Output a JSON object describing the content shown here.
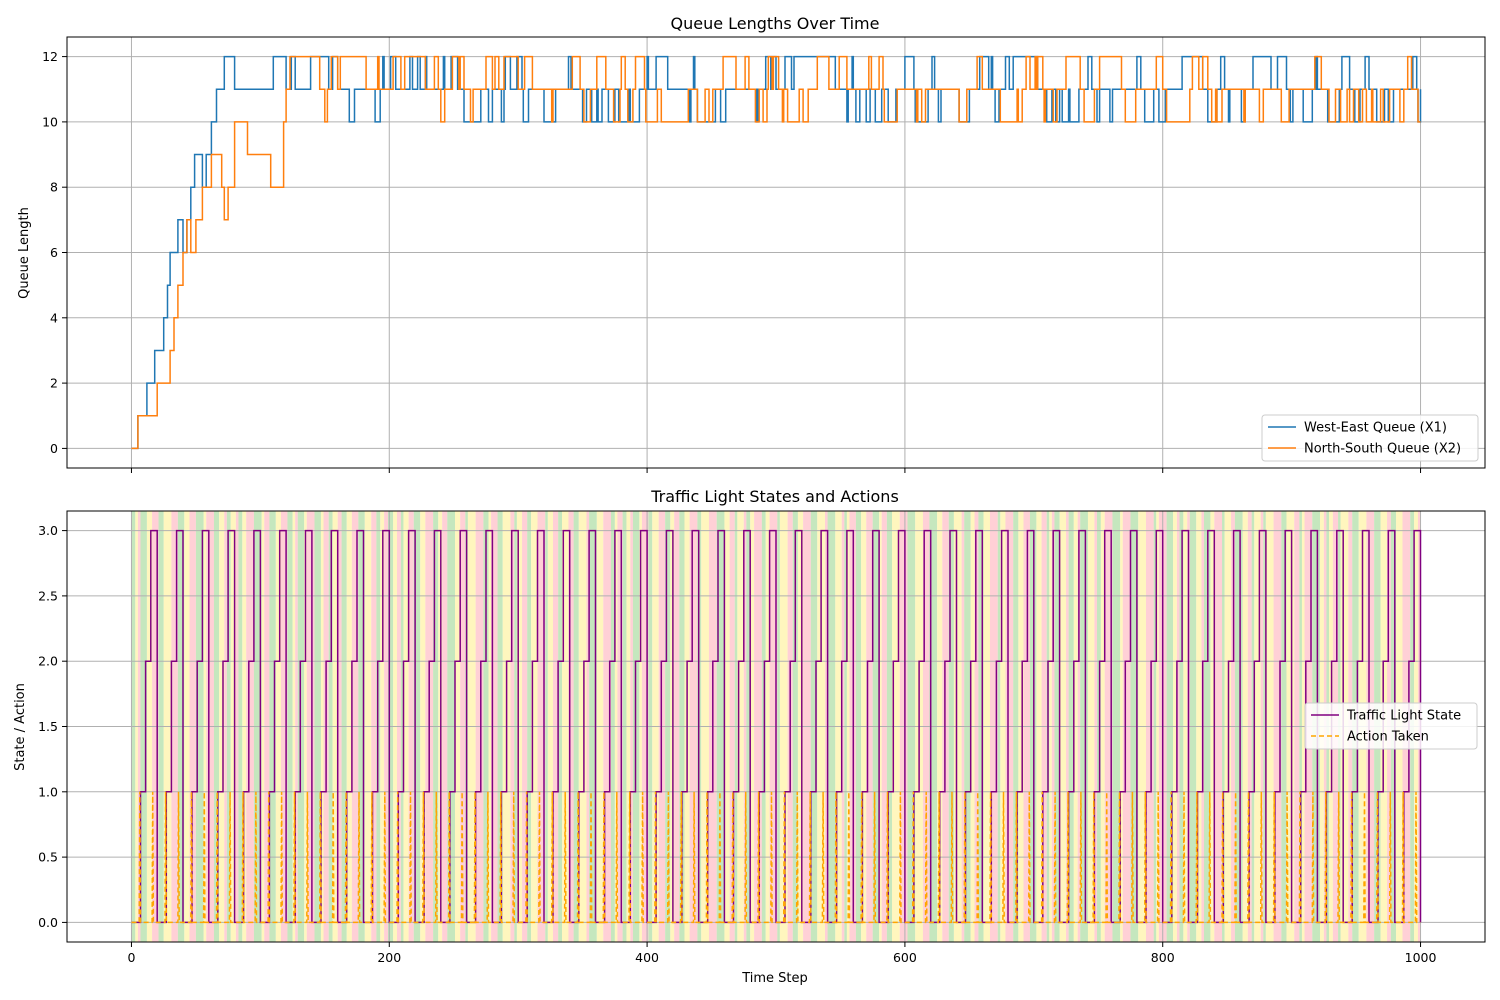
{
  "chart_data": [
    {
      "type": "line",
      "title": "Queue Lengths Over Time",
      "xlabel": "",
      "ylabel": "Queue Length",
      "xlim": [
        -50,
        1050
      ],
      "ylim": [
        -0.6,
        12.6
      ],
      "x_ticks": [
        0,
        200,
        400,
        600,
        800,
        1000
      ],
      "x_tick_labels_visible": false,
      "y_ticks": [
        0,
        2,
        4,
        6,
        8,
        10,
        12
      ],
      "y_tick_labels": [
        "0",
        "2",
        "4",
        "6",
        "8",
        "10",
        "12"
      ],
      "grid": true,
      "legend_position": "lower-right",
      "legend": [
        "West-East Queue (X1)",
        "North-South Queue (X2)"
      ],
      "series": [
        {
          "name": "West-East Queue (X1)",
          "color": "#1f77b4",
          "style": "solid",
          "description": "step series; rises from 0 to ~12 over the first ~75 steps, then fluctuates between 10 and 12",
          "x": [
            0,
            2,
            5,
            8,
            12,
            15,
            18,
            22,
            25,
            28,
            30,
            33,
            36,
            40,
            43,
            46,
            49,
            52,
            55,
            58,
            62,
            66,
            70,
            72,
            75,
            80,
            90,
            100,
            110,
            120,
            130,
            140,
            150,
            160,
            170,
            180,
            190,
            200,
            250,
            300,
            350,
            400,
            450,
            500,
            550,
            600,
            650,
            700,
            750,
            800,
            850,
            900,
            950,
            1000
          ],
          "y": [
            0,
            0,
            1,
            1,
            2,
            2,
            3,
            3,
            4,
            5,
            6,
            6,
            7,
            6,
            7,
            8,
            9,
            9,
            8,
            9,
            10,
            11,
            11,
            12,
            12,
            11,
            11,
            11,
            12,
            11,
            10,
            11,
            11,
            10,
            10,
            11,
            11,
            12,
            11,
            11,
            11,
            11,
            11,
            11,
            11,
            11,
            11,
            11,
            11,
            11,
            11,
            11,
            11,
            11
          ]
        },
        {
          "name": "North-South Queue (X2)",
          "color": "#ff7f0e",
          "style": "solid",
          "description": "step series; rises from 0 to ~10 over the first ~80 steps, then fluctuates between 10 and 12",
          "x": [
            0,
            5,
            10,
            15,
            20,
            25,
            30,
            33,
            36,
            40,
            43,
            46,
            50,
            55,
            58,
            62,
            66,
            70,
            72,
            75,
            80,
            90,
            100,
            108,
            112,
            118,
            120,
            130,
            140,
            150,
            160,
            170,
            180,
            190,
            200,
            250,
            300,
            350,
            400,
            450,
            500,
            550,
            600,
            650,
            700,
            750,
            800,
            850,
            900,
            950,
            1000
          ],
          "y": [
            0,
            1,
            1,
            1,
            2,
            2,
            3,
            4,
            5,
            6,
            7,
            6,
            7,
            8,
            8,
            9,
            9,
            8,
            7,
            8,
            10,
            9,
            9,
            8,
            8,
            10,
            11,
            11,
            11,
            11,
            10,
            11,
            11,
            11,
            12,
            11,
            11,
            11,
            11,
            11,
            11,
            11,
            11,
            11,
            11,
            11,
            11,
            11,
            11,
            11,
            11
          ]
        }
      ]
    },
    {
      "type": "line",
      "title": "Traffic Light States and Actions",
      "xlabel": "Time Step",
      "ylabel": "State / Action",
      "xlim": [
        -50,
        1050
      ],
      "ylim": [
        -0.15,
        3.15
      ],
      "x_ticks": [
        0,
        200,
        400,
        600,
        800,
        1000
      ],
      "x_tick_labels": [
        "0",
        "200",
        "400",
        "600",
        "800",
        "1000"
      ],
      "y_ticks": [
        0.0,
        0.5,
        1.0,
        1.5,
        2.0,
        2.5,
        3.0
      ],
      "y_tick_labels": [
        "0.0",
        "0.5",
        "1.0",
        "1.5",
        "2.0",
        "2.5",
        "3.0"
      ],
      "grid": true,
      "legend_position": "center-right",
      "legend": [
        "Traffic Light State",
        "Action Taken"
      ],
      "background_bands": {
        "description": "vertical colored bands behind the lines, repeating green / yellow / red shading following the light cycle",
        "colors": [
          "#b2dfa8",
          "#fff3a8",
          "#ffc0c8"
        ],
        "x_range": [
          0,
          1000
        ]
      },
      "series": [
        {
          "name": "Traffic Light State",
          "color": "#800080",
          "style": "solid",
          "description": "periodic staircase 0 -> 1 -> 2 -> 3 -> 0 with period ~20 steps",
          "period": 20,
          "phase_levels": [
            0,
            1,
            2,
            3
          ],
          "x_start": 0,
          "x_end": 1000
        },
        {
          "name": "Action Taken",
          "color": "#ffa500",
          "style": "dashed",
          "description": "dashed spikes between 0 and 1, pulses of height 1 repeated frequently",
          "levels": [
            0,
            1
          ],
          "x_start": 0,
          "x_end": 1000
        }
      ]
    }
  ]
}
